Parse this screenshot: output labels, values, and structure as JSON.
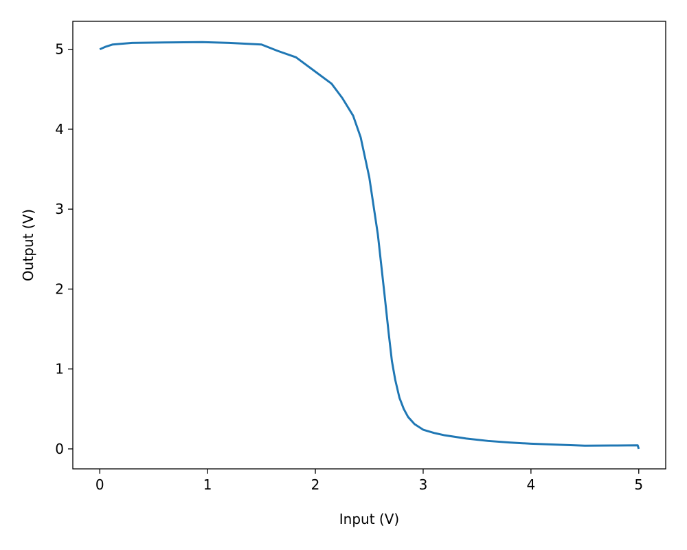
{
  "chart_data": {
    "type": "line",
    "title": "",
    "xlabel": "Input (V)",
    "ylabel": "Output (V)",
    "xlim": [
      -0.25,
      5.25
    ],
    "ylim": [
      -0.25,
      5.35
    ],
    "x_ticks": [
      0,
      1,
      2,
      3,
      4,
      5
    ],
    "y_ticks": [
      0,
      1,
      2,
      3,
      4,
      5
    ],
    "x_tick_labels": [
      "0",
      "1",
      "2",
      "3",
      "4",
      "5"
    ],
    "y_tick_labels": [
      "0",
      "1",
      "2",
      "3",
      "4",
      "5"
    ],
    "grid": false,
    "legend": "none",
    "series": [
      {
        "color": "#1f77b4",
        "x": [
          0.0,
          0.05,
          0.12,
          0.3,
          0.6,
          0.95,
          1.2,
          1.5,
          1.65,
          1.82,
          2.0,
          2.15,
          2.25,
          2.35,
          2.42,
          2.5,
          2.58,
          2.64,
          2.68,
          2.71,
          2.74,
          2.78,
          2.82,
          2.86,
          2.92,
          3.0,
          3.1,
          3.2,
          3.4,
          3.6,
          3.8,
          4.0,
          4.3,
          4.5,
          4.8,
          4.99,
          5.0
        ],
        "y": [
          5.0,
          5.03,
          5.06,
          5.08,
          5.085,
          5.09,
          5.08,
          5.06,
          4.98,
          4.9,
          4.72,
          4.57,
          4.39,
          4.17,
          3.9,
          3.4,
          2.68,
          1.95,
          1.45,
          1.1,
          0.87,
          0.64,
          0.5,
          0.4,
          0.31,
          0.24,
          0.2,
          0.17,
          0.13,
          0.1,
          0.08,
          0.065,
          0.05,
          0.04,
          0.043,
          0.045,
          0.0
        ]
      }
    ]
  }
}
